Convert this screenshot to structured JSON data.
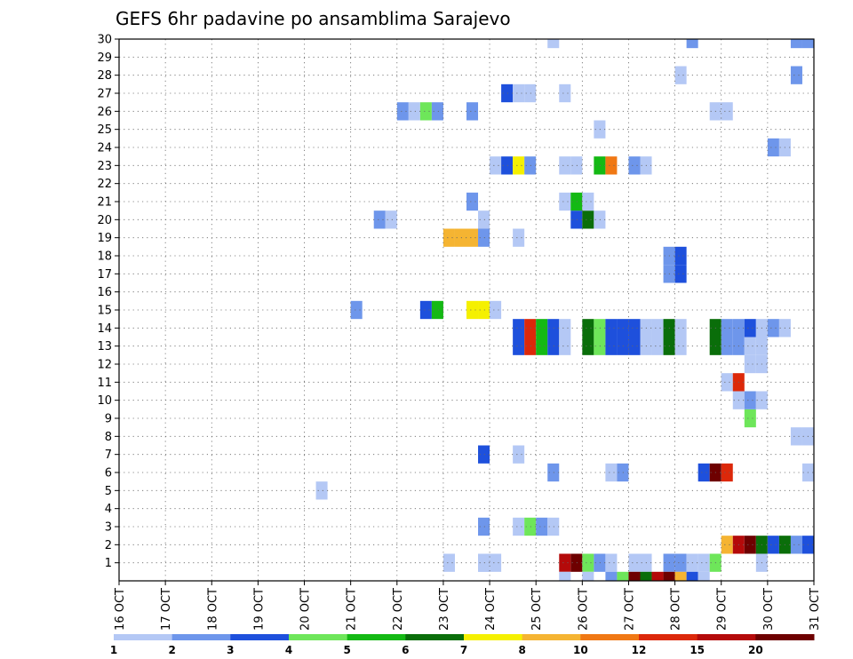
{
  "chart_data": {
    "type": "heatmap",
    "title": "GEFS 6hr padavine po ansamblima Sarajevo",
    "xlabel": "",
    "ylabel": "",
    "x_ticks": [
      "16 OCT",
      "17 OCT",
      "18 OCT",
      "19 OCT",
      "20 OCT",
      "21 OCT",
      "22 OCT",
      "23 OCT",
      "24 OCT",
      "25 OCT",
      "26 OCT",
      "27 OCT",
      "28 OCT",
      "29 OCT",
      "30 OCT",
      "31 OCT"
    ],
    "y_ticks": [
      "1",
      "2",
      "3",
      "4",
      "5",
      "6",
      "7",
      "8",
      "9",
      "10",
      "11",
      "12",
      "13",
      "14",
      "15",
      "16",
      "17",
      "18",
      "19",
      "20",
      "21",
      "22",
      "23",
      "24",
      "25",
      "26",
      "27",
      "28",
      "29",
      "30"
    ],
    "x_range_days": [
      16,
      31
    ],
    "y_range": [
      0,
      30
    ],
    "time_step_hours": 6,
    "grid": true,
    "colorbar": {
      "placement": "bottom",
      "labels": [
        "1",
        "2",
        "3",
        "4",
        "5",
        "6",
        "7",
        "8",
        "10",
        "12",
        "15",
        "20"
      ],
      "colors": [
        "#b4c8f5",
        "#6e96eb",
        "#1e50dc",
        "#6ee65a",
        "#14b914",
        "#0a6e0a",
        "#f5f000",
        "#f5b432",
        "#f07814",
        "#dc280a",
        "#b40a0a",
        "#6e0000"
      ]
    },
    "cells_encoding": "[day, hour, member, category]",
    "cells": [
      [
        23,
        0,
        1,
        0
      ],
      [
        23,
        18,
        1,
        0
      ],
      [
        23,
        18,
        1,
        0
      ],
      [
        24,
        0,
        1,
        0
      ],
      [
        25,
        12,
        1,
        10
      ],
      [
        25,
        18,
        1,
        11
      ],
      [
        26,
        0,
        1,
        3
      ],
      [
        26,
        6,
        1,
        1
      ],
      [
        26,
        12,
        1,
        0
      ],
      [
        27,
        0,
        1,
        0
      ],
      [
        27,
        6,
        1,
        0
      ],
      [
        27,
        18,
        1,
        1
      ],
      [
        28,
        0,
        1,
        1
      ],
      [
        28,
        6,
        1,
        0
      ],
      [
        28,
        12,
        1,
        0
      ],
      [
        28,
        18,
        1,
        3
      ],
      [
        29,
        18,
        1,
        0
      ],
      [
        29,
        0,
        2,
        7
      ],
      [
        29,
        6,
        2,
        10
      ],
      [
        29,
        12,
        2,
        11
      ],
      [
        29,
        18,
        2,
        5
      ],
      [
        30,
        0,
        2,
        2
      ],
      [
        30,
        6,
        2,
        5
      ],
      [
        30,
        12,
        2,
        1
      ],
      [
        30,
        18,
        2,
        2
      ],
      [
        31,
        0,
        2,
        1
      ],
      [
        23,
        18,
        3,
        1
      ],
      [
        24,
        12,
        3,
        0
      ],
      [
        24,
        18,
        3,
        3
      ],
      [
        25,
        0,
        3,
        1
      ],
      [
        25,
        6,
        3,
        0
      ],
      [
        20,
        6,
        5,
        0
      ],
      [
        25,
        6,
        6,
        1
      ],
      [
        26,
        12,
        6,
        0
      ],
      [
        26,
        18,
        6,
        1
      ],
      [
        28,
        12,
        6,
        2
      ],
      [
        28,
        18,
        6,
        11
      ],
      [
        29,
        0,
        6,
        9
      ],
      [
        30,
        18,
        6,
        0
      ],
      [
        23,
        18,
        7,
        2
      ],
      [
        24,
        12,
        7,
        0
      ],
      [
        30,
        12,
        8,
        0
      ],
      [
        30,
        18,
        8,
        0
      ],
      [
        29,
        12,
        9,
        3
      ],
      [
        29,
        6,
        10,
        0
      ],
      [
        29,
        12,
        10,
        1
      ],
      [
        29,
        18,
        10,
        0
      ],
      [
        29,
        0,
        11,
        0
      ],
      [
        29,
        6,
        11,
        9
      ],
      [
        29,
        12,
        12,
        0
      ],
      [
        29,
        18,
        12,
        0
      ],
      [
        24,
        12,
        13,
        2
      ],
      [
        24,
        18,
        13,
        9
      ],
      [
        25,
        0,
        13,
        4
      ],
      [
        25,
        6,
        13,
        2
      ],
      [
        25,
        12,
        13,
        0
      ],
      [
        26,
        0,
        13,
        5
      ],
      [
        26,
        6,
        13,
        3
      ],
      [
        26,
        12,
        13,
        2
      ],
      [
        26,
        18,
        13,
        2
      ],
      [
        27,
        0,
        13,
        2
      ],
      [
        27,
        6,
        13,
        0
      ],
      [
        27,
        12,
        13,
        0
      ],
      [
        27,
        18,
        13,
        5
      ],
      [
        28,
        0,
        13,
        0
      ],
      [
        28,
        18,
        13,
        5
      ],
      [
        29,
        0,
        13,
        1
      ],
      [
        29,
        6,
        13,
        1
      ],
      [
        29,
        12,
        13,
        0
      ],
      [
        29,
        18,
        13,
        0
      ],
      [
        24,
        12,
        14,
        2
      ],
      [
        24,
        18,
        14,
        9
      ],
      [
        25,
        0,
        14,
        4
      ],
      [
        25,
        6,
        14,
        2
      ],
      [
        25,
        12,
        14,
        0
      ],
      [
        26,
        0,
        14,
        5
      ],
      [
        26,
        6,
        14,
        3
      ],
      [
        26,
        12,
        14,
        2
      ],
      [
        26,
        18,
        14,
        2
      ],
      [
        27,
        0,
        14,
        2
      ],
      [
        27,
        6,
        14,
        0
      ],
      [
        27,
        12,
        14,
        0
      ],
      [
        27,
        18,
        14,
        5
      ],
      [
        28,
        0,
        14,
        0
      ],
      [
        28,
        18,
        14,
        5
      ],
      [
        29,
        0,
        14,
        1
      ],
      [
        29,
        6,
        14,
        1
      ],
      [
        29,
        12,
        14,
        2
      ],
      [
        29,
        18,
        14,
        0
      ],
      [
        30,
        0,
        14,
        1
      ],
      [
        30,
        6,
        14,
        0
      ],
      [
        31,
        0,
        14,
        3
      ],
      [
        21,
        0,
        15,
        1
      ],
      [
        22,
        12,
        15,
        2
      ],
      [
        22,
        18,
        15,
        4
      ],
      [
        23,
        12,
        15,
        6
      ],
      [
        23,
        18,
        15,
        6
      ],
      [
        24,
        0,
        15,
        0
      ],
      [
        28,
        0,
        17,
        2
      ],
      [
        27,
        18,
        17,
        1
      ],
      [
        28,
        0,
        18,
        2
      ],
      [
        27,
        18,
        18,
        1
      ],
      [
        23,
        0,
        19,
        7
      ],
      [
        23,
        6,
        19,
        7
      ],
      [
        23,
        12,
        19,
        7
      ],
      [
        23,
        18,
        19,
        1
      ],
      [
        24,
        12,
        19,
        0
      ],
      [
        21,
        12,
        20,
        1
      ],
      [
        21,
        18,
        20,
        0
      ],
      [
        23,
        18,
        20,
        0
      ],
      [
        25,
        18,
        20,
        2
      ],
      [
        26,
        0,
        20,
        5
      ],
      [
        26,
        6,
        20,
        0
      ],
      [
        23,
        12,
        21,
        1
      ],
      [
        25,
        12,
        21,
        0
      ],
      [
        25,
        18,
        21,
        4
      ],
      [
        26,
        0,
        21,
        0
      ],
      [
        24,
        0,
        23,
        0
      ],
      [
        24,
        6,
        23,
        2
      ],
      [
        24,
        12,
        23,
        6
      ],
      [
        24,
        18,
        23,
        1
      ],
      [
        25,
        12,
        23,
        0
      ],
      [
        25,
        18,
        23,
        0
      ],
      [
        26,
        6,
        23,
        4
      ],
      [
        26,
        12,
        23,
        8
      ],
      [
        27,
        0,
        23,
        1
      ],
      [
        27,
        6,
        23,
        0
      ],
      [
        26,
        6,
        25,
        0
      ],
      [
        30,
        0,
        24,
        1
      ],
      [
        30,
        6,
        24,
        0
      ],
      [
        22,
        0,
        26,
        1
      ],
      [
        22,
        6,
        26,
        0
      ],
      [
        22,
        12,
        26,
        3
      ],
      [
        22,
        18,
        26,
        1
      ],
      [
        23,
        12,
        26,
        1
      ],
      [
        28,
        18,
        26,
        0
      ],
      [
        29,
        0,
        26,
        0
      ],
      [
        24,
        6,
        27,
        2
      ],
      [
        24,
        12,
        27,
        0
      ],
      [
        24,
        18,
        27,
        0
      ],
      [
        25,
        12,
        27,
        0
      ],
      [
        28,
        0,
        28,
        0
      ],
      [
        30,
        12,
        28,
        1
      ],
      [
        25,
        6,
        30,
        0
      ],
      [
        28,
        6,
        30,
        1
      ],
      [
        30,
        12,
        30,
        1
      ],
      [
        30,
        18,
        30,
        1
      ],
      [
        25,
        12,
        0,
        0
      ],
      [
        26,
        0,
        0,
        0
      ],
      [
        26,
        12,
        0,
        1
      ],
      [
        26,
        18,
        0,
        3
      ],
      [
        27,
        0,
        0,
        11
      ],
      [
        27,
        6,
        0,
        5
      ],
      [
        27,
        12,
        0,
        10
      ],
      [
        27,
        18,
        0,
        11
      ],
      [
        28,
        0,
        0,
        7
      ],
      [
        28,
        6,
        0,
        2
      ],
      [
        28,
        12,
        0,
        0
      ]
    ]
  }
}
